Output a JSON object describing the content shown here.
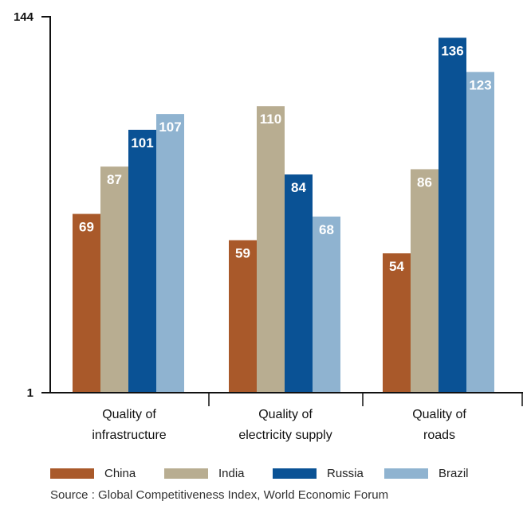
{
  "chart_data": {
    "type": "bar",
    "categories": [
      [
        "Quality of",
        "infrastructure"
      ],
      [
        "Quality of",
        "electricity supply"
      ],
      [
        "Quality of",
        "roads"
      ]
    ],
    "series": [
      {
        "name": "China",
        "color": "#a9592a",
        "values": [
          69,
          59,
          54
        ]
      },
      {
        "name": "India",
        "color": "#b8ad91",
        "values": [
          87,
          110,
          86
        ]
      },
      {
        "name": "Russia",
        "color": "#0a5295",
        "values": [
          101,
          84,
          136
        ]
      },
      {
        "name": "Brazil",
        "color": "#8fb3d0",
        "values": [
          107,
          68,
          123
        ]
      }
    ],
    "ylim": [
      1,
      144
    ],
    "yticks": [
      "144",
      "1"
    ],
    "grid": false,
    "legend_position": "bottom"
  },
  "source": "Source : Global Competitiveness Index, World Economic Forum"
}
